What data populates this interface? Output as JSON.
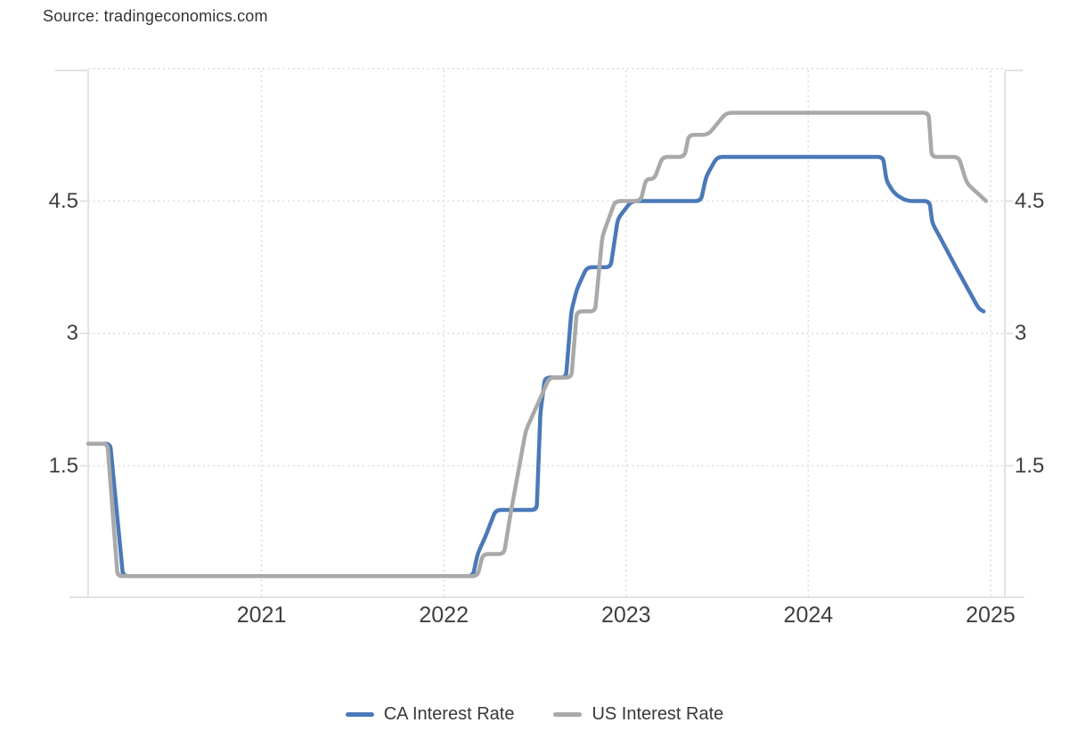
{
  "source_label": "Source: tradingeconomics.com",
  "colors": {
    "background": "#ffffff",
    "ca_line": "#4b79b8",
    "us_line": "#a9a9a9",
    "axis_line": "#e2e2e2",
    "grid_dots": "#dedede",
    "axis_text": "#3f3f3f",
    "legend_text": "#383838"
  },
  "legend": {
    "items": [
      {
        "label": "CA Interest Rate",
        "color": "#4b79b8"
      },
      {
        "label": "US Interest Rate",
        "color": "#a9a9a9"
      }
    ]
  },
  "chart_data": {
    "type": "line",
    "title": "",
    "xlabel": "",
    "ylabel": "",
    "grid": "dotted",
    "legend_position": "bottom",
    "x_axis": {
      "range_years": [
        2020.05,
        2025.08
      ],
      "tick_years": [
        2021,
        2022,
        2023,
        2024,
        2025
      ],
      "tick_labels": [
        "2021",
        "2022",
        "2023",
        "2024",
        "2025"
      ]
    },
    "y_axis": {
      "range": [
        0,
        6
      ],
      "labeled_ticks": [
        4.5,
        3,
        1.5
      ],
      "tick_labels": [
        "4.5",
        "3",
        "1.5"
      ],
      "unlabeled_top_gridline": 6,
      "labels_on_both_sides": true
    },
    "series": [
      {
        "name": "CA Interest Rate",
        "color": "#4b79b8",
        "unit": "percent",
        "points_year_value": [
          [
            2020.05,
            1.75
          ],
          [
            2020.17,
            1.75
          ],
          [
            2020.24,
            0.25
          ],
          [
            2022.16,
            0.25
          ],
          [
            2022.185,
            0.5
          ],
          [
            2022.225,
            0.68
          ],
          [
            2022.285,
            1.0
          ],
          [
            2022.51,
            1.0
          ],
          [
            2022.53,
            2.1
          ],
          [
            2022.555,
            2.5
          ],
          [
            2022.67,
            2.5
          ],
          [
            2022.7,
            3.25
          ],
          [
            2022.73,
            3.5
          ],
          [
            2022.785,
            3.75
          ],
          [
            2022.915,
            3.75
          ],
          [
            2022.955,
            4.3
          ],
          [
            2023.03,
            4.5
          ],
          [
            2023.41,
            4.5
          ],
          [
            2023.44,
            4.78
          ],
          [
            2023.5,
            5.0
          ],
          [
            2024.41,
            5.0
          ],
          [
            2024.43,
            4.72
          ],
          [
            2024.475,
            4.58
          ],
          [
            2024.54,
            4.5
          ],
          [
            2024.665,
            4.5
          ],
          [
            2024.68,
            4.25
          ],
          [
            2024.72,
            4.1
          ],
          [
            2024.81,
            3.75
          ],
          [
            2024.935,
            3.28
          ],
          [
            2024.962,
            3.25
          ]
        ]
      },
      {
        "name": "US Interest Rate",
        "color": "#a9a9a9",
        "unit": "percent",
        "points_year_value": [
          [
            2020.05,
            1.75
          ],
          [
            2020.155,
            1.75
          ],
          [
            2020.21,
            0.25
          ],
          [
            2022.185,
            0.25
          ],
          [
            2022.215,
            0.5
          ],
          [
            2022.33,
            0.5
          ],
          [
            2022.37,
            1.0
          ],
          [
            2022.45,
            1.9
          ],
          [
            2022.58,
            2.5
          ],
          [
            2022.7,
            2.5
          ],
          [
            2022.73,
            3.25
          ],
          [
            2022.83,
            3.25
          ],
          [
            2022.87,
            4.1
          ],
          [
            2022.94,
            4.5
          ],
          [
            2023.08,
            4.5
          ],
          [
            2023.11,
            4.75
          ],
          [
            2023.155,
            4.75
          ],
          [
            2023.2,
            5.0
          ],
          [
            2023.32,
            5.0
          ],
          [
            2023.345,
            5.25
          ],
          [
            2023.45,
            5.25
          ],
          [
            2023.55,
            5.5
          ],
          [
            2024.66,
            5.5
          ],
          [
            2024.677,
            5.0
          ],
          [
            2024.825,
            5.0
          ],
          [
            2024.87,
            4.7
          ],
          [
            2024.975,
            4.5
          ]
        ]
      }
    ]
  }
}
